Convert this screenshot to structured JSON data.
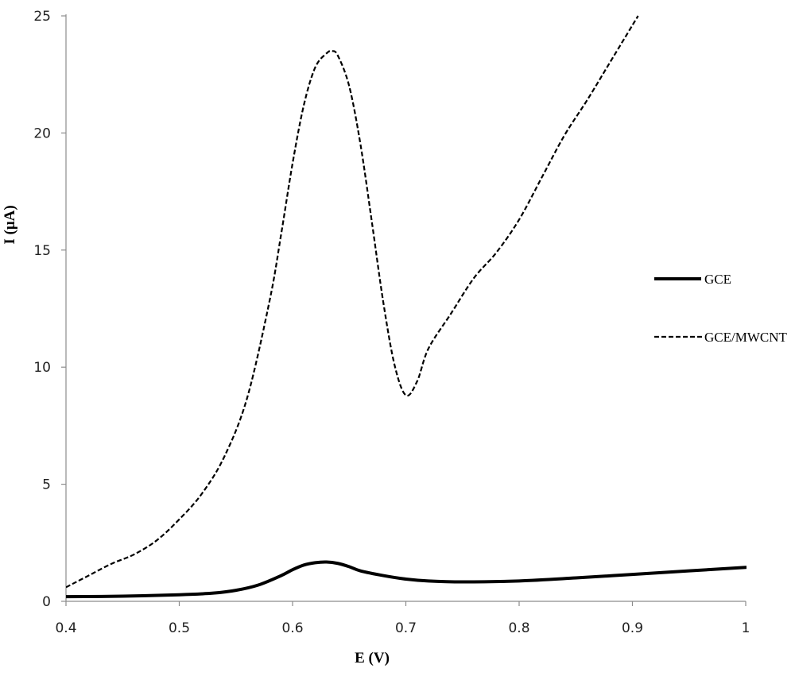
{
  "chart_data": {
    "type": "line",
    "title": "",
    "xlabel": "E (V)",
    "ylabel": "I (μA)",
    "xlim": [
      0.4,
      1.0
    ],
    "ylim": [
      0,
      25
    ],
    "grid": false,
    "legend_position": "right",
    "x_ticks": [
      0.4,
      0.5,
      0.6,
      0.7,
      0.8,
      0.9,
      1.0
    ],
    "x_tick_labels": [
      "0.4",
      "0.5",
      "0.6",
      "0.7",
      "0.8",
      "0.9",
      "1"
    ],
    "y_ticks": [
      0,
      5,
      10,
      15,
      20,
      25
    ],
    "y_tick_labels": [
      "0",
      "5",
      "10",
      "15",
      "20",
      "25"
    ],
    "series": [
      {
        "name": "GCE",
        "style": "solid",
        "color": "#000000",
        "x": [
          0.4,
          0.45,
          0.5,
          0.53,
          0.55,
          0.57,
          0.59,
          0.6,
          0.61,
          0.62,
          0.63,
          0.64,
          0.65,
          0.66,
          0.68,
          0.7,
          0.72,
          0.75,
          0.8,
          0.85,
          0.9,
          0.95,
          1.0
        ],
        "y": [
          0.2,
          0.22,
          0.28,
          0.35,
          0.47,
          0.7,
          1.1,
          1.35,
          1.55,
          1.65,
          1.68,
          1.62,
          1.48,
          1.3,
          1.1,
          0.95,
          0.87,
          0.83,
          0.87,
          1.0,
          1.15,
          1.3,
          1.45
        ]
      },
      {
        "name": "GCE/MWCNT",
        "style": "dashed",
        "color": "#000000",
        "x": [
          0.4,
          0.42,
          0.44,
          0.46,
          0.48,
          0.5,
          0.52,
          0.54,
          0.56,
          0.58,
          0.59,
          0.6,
          0.61,
          0.62,
          0.63,
          0.635,
          0.64,
          0.65,
          0.66,
          0.67,
          0.68,
          0.69,
          0.7,
          0.71,
          0.72,
          0.74,
          0.76,
          0.78,
          0.8,
          0.82,
          0.84,
          0.86,
          0.88,
          0.9,
          0.905
        ],
        "y": [
          0.6,
          1.1,
          1.6,
          2.0,
          2.6,
          3.5,
          4.6,
          6.2,
          8.7,
          12.9,
          15.7,
          18.7,
          21.2,
          22.8,
          23.4,
          23.5,
          23.3,
          22.0,
          19.5,
          16.2,
          12.8,
          10.1,
          8.8,
          9.4,
          10.8,
          12.3,
          13.8,
          14.9,
          16.3,
          18.1,
          19.9,
          21.4,
          23.0,
          24.6,
          25.0
        ]
      }
    ]
  }
}
